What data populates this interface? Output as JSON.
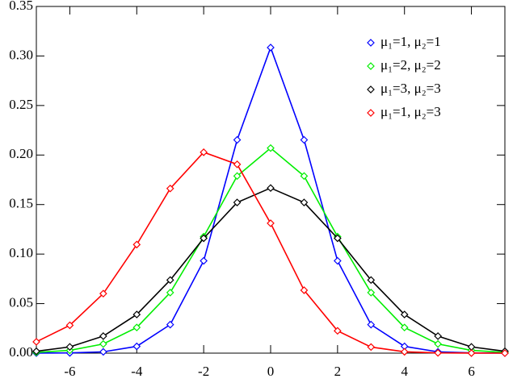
{
  "chart_data": {
    "type": "line",
    "x": [
      -7,
      -6,
      -5,
      -4,
      -3,
      -2,
      -1,
      0,
      1,
      2,
      3,
      4,
      5,
      6,
      7
    ],
    "series": [
      {
        "name": "μ₁=1, μ₂=1",
        "color": "#0000ff",
        "values": [
          3e-05,
          0.00022,
          0.00133,
          0.00686,
          0.0288,
          0.0932,
          0.2153,
          0.3085,
          0.2153,
          0.0932,
          0.0288,
          0.00686,
          0.00133,
          0.00022,
          3e-05
        ]
      },
      {
        "name": "μ₁=2, μ₂=2",
        "color": "#00ee00",
        "values": [
          0.00076,
          0.00283,
          0.00924,
          0.0259,
          0.0611,
          0.1176,
          0.1788,
          0.207,
          0.1788,
          0.1176,
          0.0611,
          0.0259,
          0.00924,
          0.00283,
          0.00076
        ]
      },
      {
        "name": "μ₁=3, μ₂=3",
        "color": "#000000",
        "values": [
          0.0019,
          0.0063,
          0.0172,
          0.039,
          0.0738,
          0.116,
          0.1521,
          0.1667,
          0.1521,
          0.116,
          0.0738,
          0.039,
          0.0172,
          0.0063,
          0.0019
        ]
      },
      {
        "name": "μ₁=1, μ₂=3",
        "color": "#ff0000",
        "values": [
          0.01143,
          0.0281,
          0.0601,
          0.1096,
          0.1662,
          0.2028,
          0.1906,
          0.1311,
          0.0635,
          0.02253,
          0.00616,
          0.00135,
          0.000247,
          3.85e-05,
          5.2e-06
        ]
      }
    ],
    "xlim": [
      -7,
      7
    ],
    "xticks": [
      -6,
      -4,
      -2,
      0,
      2,
      4,
      6
    ],
    "ylim": [
      0,
      0.35
    ],
    "yticks": [
      {
        "value": 0,
        "label": "0.00"
      },
      {
        "value": 0.05,
        "label": "0.05"
      },
      {
        "value": 0.1,
        "label": "0.10"
      },
      {
        "value": 0.15,
        "label": "0.15"
      },
      {
        "value": 0.2,
        "label": "0.20"
      },
      {
        "value": 0.25,
        "label": "0.25"
      },
      {
        "value": 0.3,
        "label": "0.30"
      },
      {
        "value": 0.35,
        "label": "0.35"
      }
    ],
    "legend": "upper right",
    "marker": "diamond"
  }
}
